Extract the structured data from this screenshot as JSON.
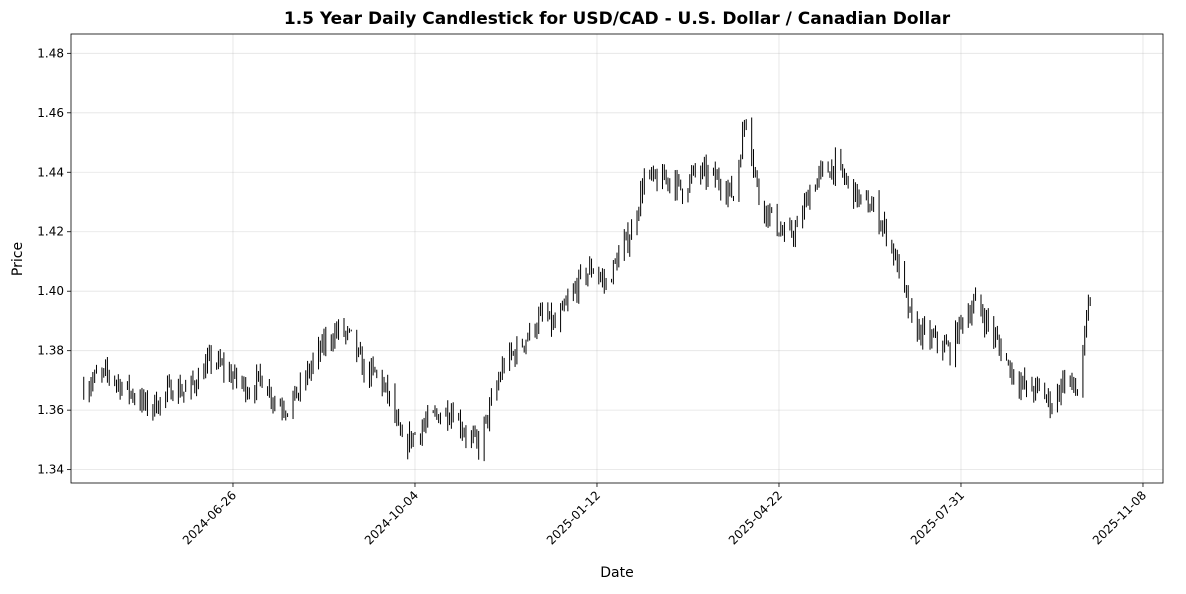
{
  "chart_data": {
    "type": "candlestick",
    "title": "1.5 Year Daily Candlestick for USD/CAD - U.S. Dollar / Canadian Dollar",
    "xlabel": "Date",
    "ylabel": "Price",
    "x_tick_labels": [
      "2024-06-26",
      "2024-10-04",
      "2025-01-12",
      "2025-04-22",
      "2025-07-31",
      "2025-11-08"
    ],
    "x_ticks": [
      "2024-06-26",
      "2024-10-04",
      "2025-01-12",
      "2025-04-22",
      "2025-07-31",
      "2025-11-08"
    ],
    "y_tick_labels": [
      "1.34",
      "1.36",
      "1.38",
      "1.40",
      "1.42",
      "1.44",
      "1.46",
      "1.48"
    ],
    "y_ticks": [
      1.34,
      1.36,
      1.38,
      1.4,
      1.42,
      1.44,
      1.46,
      1.48
    ],
    "xlim": [
      "2024-03-29",
      "2025-11-19"
    ],
    "ylim": [
      1.3355,
      1.4865
    ],
    "grid": true,
    "candle_color": "#000000",
    "date_range": [
      "2024-04-05",
      "2025-10-10"
    ],
    "weekly_close": [
      [
        "2024-04-05",
        1.368
      ],
      [
        "2024-04-12",
        1.371
      ],
      [
        "2024-04-19",
        1.372
      ],
      [
        "2024-04-26",
        1.368
      ],
      [
        "2024-05-03",
        1.365
      ],
      [
        "2024-05-10",
        1.361
      ],
      [
        "2024-05-17",
        1.363
      ],
      [
        "2024-05-24",
        1.368
      ],
      [
        "2024-05-31",
        1.366
      ],
      [
        "2024-06-07",
        1.371
      ],
      [
        "2024-06-14",
        1.377
      ],
      [
        "2024-06-21",
        1.374
      ],
      [
        "2024-06-28",
        1.37
      ],
      [
        "2024-07-05",
        1.367
      ],
      [
        "2024-07-12",
        1.371
      ],
      [
        "2024-07-19",
        1.363
      ],
      [
        "2024-07-26",
        1.361
      ],
      [
        "2024-08-02",
        1.367
      ],
      [
        "2024-08-09",
        1.376
      ],
      [
        "2024-08-16",
        1.383
      ],
      [
        "2024-08-23",
        1.387
      ],
      [
        "2024-08-30",
        1.384
      ],
      [
        "2024-09-06",
        1.373
      ],
      [
        "2024-09-13",
        1.372
      ],
      [
        "2024-09-20",
        1.364
      ],
      [
        "2024-09-27",
        1.348
      ],
      [
        "2024-10-04",
        1.352
      ],
      [
        "2024-10-11",
        1.356
      ],
      [
        "2024-10-18",
        1.359
      ],
      [
        "2024-10-25",
        1.36
      ],
      [
        "2024-11-01",
        1.352
      ],
      [
        "2024-11-08",
        1.348
      ],
      [
        "2024-11-15",
        1.362
      ],
      [
        "2024-11-22",
        1.376
      ],
      [
        "2024-11-29",
        1.38
      ],
      [
        "2024-12-06",
        1.386
      ],
      [
        "2024-12-13",
        1.392
      ],
      [
        "2024-12-20",
        1.388
      ],
      [
        "2024-12-27",
        1.396
      ],
      [
        "2025-01-03",
        1.404
      ],
      [
        "2025-01-10",
        1.408
      ],
      [
        "2025-01-17",
        1.402
      ],
      [
        "2025-01-24",
        1.412
      ],
      [
        "2025-01-31",
        1.42
      ],
      [
        "2025-02-07",
        1.438
      ],
      [
        "2025-02-14",
        1.437
      ],
      [
        "2025-02-21",
        1.438
      ],
      [
        "2025-02-28",
        1.434
      ],
      [
        "2025-03-07",
        1.44
      ],
      [
        "2025-03-14",
        1.439
      ],
      [
        "2025-03-21",
        1.437
      ],
      [
        "2025-03-28",
        1.432
      ],
      [
        "2025-04-04",
        1.46
      ],
      [
        "2025-04-11",
        1.431
      ],
      [
        "2025-04-18",
        1.425
      ],
      [
        "2025-04-25",
        1.418
      ],
      [
        "2025-05-02",
        1.421
      ],
      [
        "2025-05-09",
        1.434
      ],
      [
        "2025-05-16",
        1.44
      ],
      [
        "2025-05-23",
        1.442
      ],
      [
        "2025-05-30",
        1.436
      ],
      [
        "2025-06-06",
        1.43
      ],
      [
        "2025-06-13",
        1.428
      ],
      [
        "2025-06-20",
        1.42
      ],
      [
        "2025-06-27",
        1.407
      ],
      [
        "2025-07-04",
        1.389
      ],
      [
        "2025-07-11",
        1.385
      ],
      [
        "2025-07-18",
        1.383
      ],
      [
        "2025-07-25",
        1.38
      ],
      [
        "2025-08-01",
        1.391
      ],
      [
        "2025-08-08",
        1.396
      ],
      [
        "2025-08-15",
        1.389
      ],
      [
        "2025-08-22",
        1.38
      ],
      [
        "2025-08-29",
        1.372
      ],
      [
        "2025-09-05",
        1.367
      ],
      [
        "2025-09-12",
        1.367
      ],
      [
        "2025-09-19",
        1.362
      ],
      [
        "2025-09-26",
        1.371
      ],
      [
        "2025-10-03",
        1.366
      ],
      [
        "2025-10-10",
        1.398
      ]
    ]
  }
}
